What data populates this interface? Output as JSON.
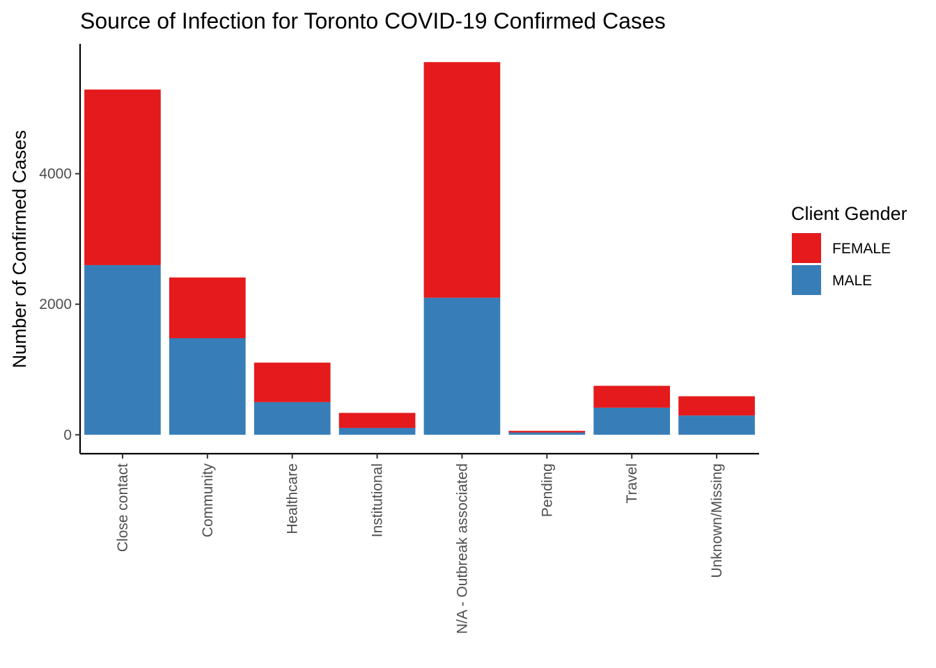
{
  "chart_data": {
    "type": "bar",
    "stacked": true,
    "title": "Source of Infection for Toronto COVID-19 Confirmed Cases",
    "xlabel": "",
    "ylabel": "Number of Confirmed Cases",
    "categories": [
      "Close contact",
      "Community",
      "Healthcare",
      "Institutional",
      "N/A - Outbreak associated",
      "Pending",
      "Travel",
      "Unknown/Missing"
    ],
    "series": [
      {
        "name": "MALE",
        "color": "#377EB8",
        "values": [
          2600,
          1480,
          500,
          105,
          2100,
          35,
          415,
          295
        ]
      },
      {
        "name": "FEMALE",
        "color": "#E41A1C",
        "values": [
          2690,
          930,
          605,
          230,
          3610,
          25,
          335,
          295
        ]
      }
    ],
    "ylim": [
      -290,
      5990
    ],
    "yticks": [
      0,
      2000,
      4000
    ],
    "ytick_labels": [
      "0",
      "2000",
      "4000"
    ],
    "grid": false,
    "legend": {
      "title": "Client Gender",
      "position": "right",
      "entries": [
        {
          "label": "FEMALE",
          "color": "#E41A1C"
        },
        {
          "label": "MALE",
          "color": "#377EB8"
        }
      ]
    }
  }
}
